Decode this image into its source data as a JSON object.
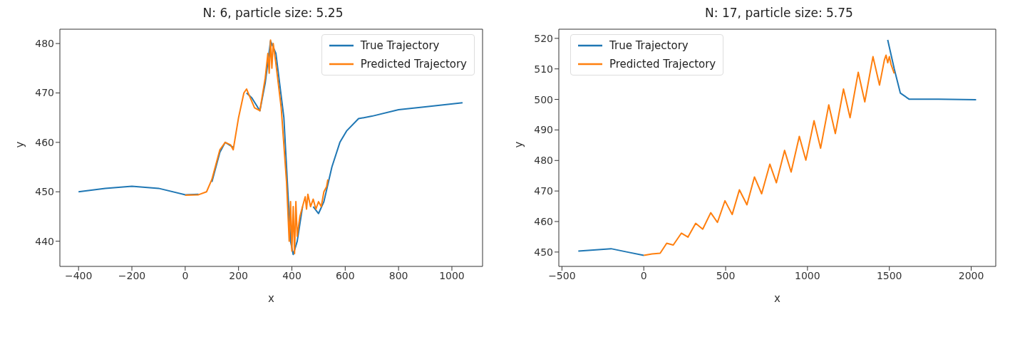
{
  "chart_data": [
    {
      "type": "line",
      "title": "N: 6, particle size: 5.25",
      "xlabel": "x",
      "ylabel": "y",
      "xlim": [
        -470,
        1115
      ],
      "ylim": [
        434.9,
        482.9
      ],
      "xticks": [
        -400,
        -200,
        0,
        200,
        400,
        600,
        800,
        1000
      ],
      "yticks": [
        440,
        450,
        460,
        470,
        480
      ],
      "legend": "top right",
      "grid": false,
      "series": [
        {
          "name": "True Trajectory",
          "color": "#1f77b4",
          "x": [
            -400,
            -300,
            -200,
            -100,
            0,
            50,
            80,
            100,
            130,
            150,
            180,
            200,
            230,
            250,
            280,
            300,
            320,
            340,
            370,
            385,
            395,
            405,
            420,
            440,
            460,
            480,
            500,
            520,
            550,
            580,
            605,
            650,
            700,
            800,
            900,
            1040
          ],
          "values": [
            450,
            450.7,
            451.1,
            450.7,
            449.4,
            449.5,
            null,
            452,
            458,
            460,
            459,
            null,
            470,
            469,
            466.4,
            472,
            480.5,
            478,
            465,
            450,
            440,
            437.3,
            440,
            447,
            null,
            447,
            445.6,
            448,
            455,
            460,
            462.3,
            464.8,
            465.3,
            466.6,
            467.2,
            468
          ]
        },
        {
          "name": "Predicted Trajectory",
          "color": "#ff7f0e",
          "x": [
            0,
            50,
            80,
            100,
            130,
            150,
            170,
            180,
            200,
            220,
            230,
            240,
            260,
            280,
            300,
            310,
            315,
            320,
            325,
            330,
            340,
            360,
            380,
            390,
            395,
            400,
            405,
            410,
            415,
            420,
            430,
            440,
            450,
            455,
            460,
            470,
            480,
            490,
            500,
            510,
            520,
            530,
            535
          ],
          "values": [
            449.3,
            449.4,
            450,
            452.5,
            458.5,
            460,
            459.5,
            458.5,
            465,
            470,
            470.8,
            469.5,
            467,
            466.4,
            473,
            478,
            474,
            480.7,
            475,
            480,
            476,
            467,
            452,
            440,
            448,
            438,
            447,
            437.5,
            448,
            441,
            445,
            447,
            449,
            446.5,
            449.5,
            447,
            448.5,
            446.5,
            448,
            447,
            450,
            451,
            452.5
          ]
        }
      ]
    },
    {
      "type": "line",
      "title": "N: 17, particle size: 5.75",
      "xlabel": "x",
      "ylabel": "y",
      "xlim": [
        -519,
        2150
      ],
      "ylim": [
        445.3,
        523
      ],
      "xticks": [
        -500,
        0,
        500,
        1000,
        1500,
        2000
      ],
      "yticks": [
        450,
        460,
        470,
        480,
        490,
        500,
        510,
        520
      ],
      "legend": "top left",
      "grid": false,
      "series": [
        {
          "name": "True Trajectory",
          "color": "#1f77b4",
          "x": [
            -400,
            -200,
            -100,
            0,
            50,
            100,
            140,
            180,
            230,
            270,
            317,
            360,
            409,
            450,
            496,
            540,
            584,
            630,
            676,
            720,
            770,
            810,
            860,
            900,
            950,
            990,
            1040,
            1080,
            1130,
            1170,
            1220,
            1260,
            1310,
            1350,
            1400,
            1440,
            1490,
            1530,
            1567,
            1620,
            1800,
            2030
          ],
          "values": [
            450.3,
            451.1,
            450,
            448.9,
            null,
            null,
            null,
            null,
            null,
            null,
            null,
            null,
            null,
            null,
            null,
            null,
            null,
            null,
            null,
            null,
            null,
            null,
            null,
            null,
            null,
            null,
            null,
            null,
            null,
            null,
            null,
            null,
            null,
            null,
            null,
            null,
            519.5,
            510,
            502.1,
            500.1,
            500.1,
            499.9
          ]
        },
        {
          "name": "Predicted Trajectory",
          "color": "#ff7f0e",
          "x": [
            0,
            50,
            100,
            140,
            180,
            230,
            270,
            317,
            360,
            409,
            450,
            496,
            540,
            584,
            630,
            676,
            720,
            770,
            810,
            860,
            900,
            950,
            990,
            1040,
            1080,
            1130,
            1170,
            1220,
            1260,
            1310,
            1350,
            1400,
            1440,
            1470,
            1480,
            1490,
            1500,
            1510,
            1530
          ],
          "values": [
            448.9,
            449.4,
            449.6,
            452.9,
            452.3,
            456.2,
            454.9,
            459.4,
            457.5,
            462.9,
            459.7,
            466.8,
            462.3,
            470.4,
            465.5,
            474.6,
            469.1,
            478.8,
            472.7,
            483.3,
            476.2,
            487.9,
            480.1,
            493,
            484,
            498.2,
            488.8,
            503.4,
            494,
            508.9,
            499.2,
            514,
            504.7,
            513,
            514.5,
            512,
            514,
            511.5,
            508.5
          ]
        }
      ]
    }
  ]
}
